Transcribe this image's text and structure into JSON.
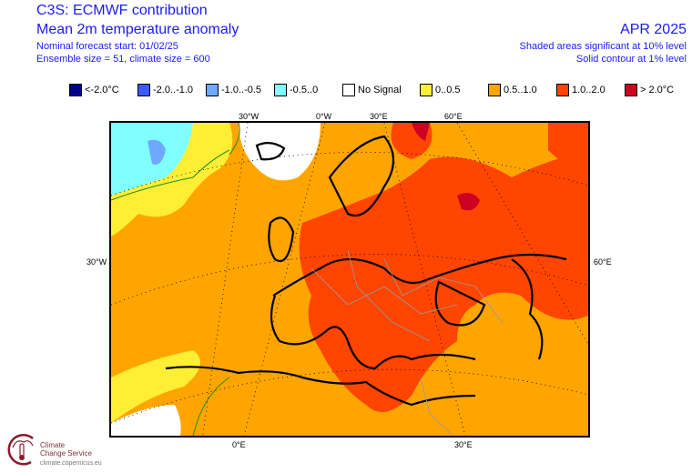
{
  "header": {
    "title": "C3S: ECMWF contribution",
    "subtitle": "Mean 2m temperature anomaly",
    "forecast_start": "Nominal forecast start: 01/02/25",
    "ensemble": "Ensemble size = 51, climate size = 600",
    "period": "APR 2025",
    "shaded_note": "Shaded areas significant at 10% level",
    "contour_note": "Solid contour at 1% level"
  },
  "legend": [
    {
      "label": "<-2.0°C",
      "color": "#00008b"
    },
    {
      "label": "-2.0..-1.0",
      "color": "#3a5cff"
    },
    {
      "label": "-1.0..-0.5",
      "color": "#6fa8ff"
    },
    {
      "label": "-0.5..0",
      "color": "#7fffff"
    },
    {
      "label": "No Signal",
      "color": "#ffffff"
    },
    {
      "label": "0..0.5",
      "color": "#ffee33"
    },
    {
      "label": "0.5..1.0",
      "color": "#ffa500"
    },
    {
      "label": "1.0..2.0",
      "color": "#ff4500"
    },
    {
      "label": "> 2.0°C",
      "color": "#cc0020"
    }
  ],
  "axis_labels": {
    "top": [
      "30°W",
      "0°W",
      "30°E",
      "60°E"
    ],
    "left": "30°W",
    "right": "60°E",
    "bottom": [
      "0°E",
      "30°E"
    ]
  },
  "logo": {
    "line1": "Climate",
    "line2": "Change Service",
    "url": "climate.copernicus.eu"
  }
}
